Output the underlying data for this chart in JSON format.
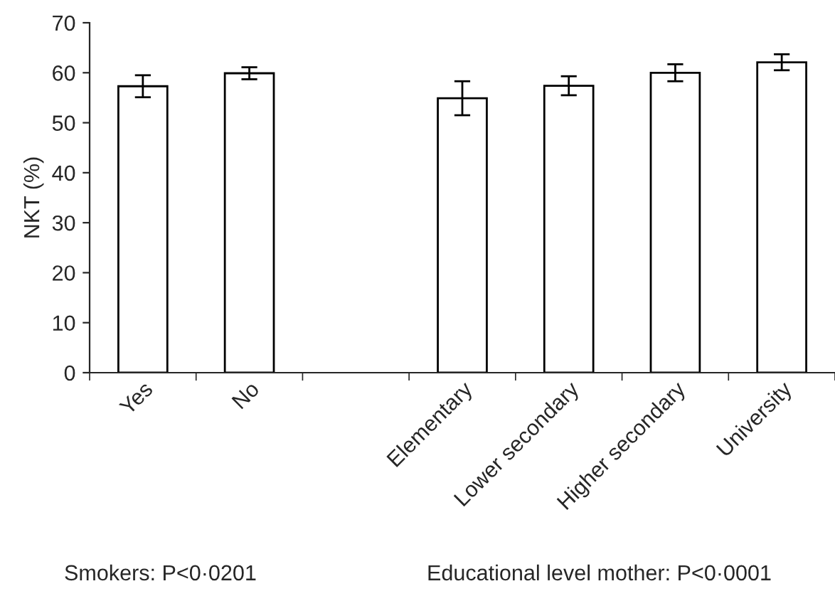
{
  "chart_data": {
    "type": "bar",
    "ylabel": "NKT (%)",
    "categories": [
      "Yes",
      "No",
      null,
      "Elementary",
      "Lower secondary",
      "Higher secondary",
      "University"
    ],
    "values": [
      57.3,
      59.9,
      null,
      54.9,
      57.4,
      60.0,
      62.1
    ],
    "errors": [
      2.2,
      1.2,
      null,
      3.4,
      1.9,
      1.7,
      1.6
    ],
    "color": "#ffffff",
    "ylim": [
      0,
      70
    ],
    "yticks": [
      0,
      10,
      20,
      30,
      40,
      50,
      60,
      70
    ],
    "grid": false,
    "legend": false,
    "annotations": [
      "Smokers: P<0·0201",
      "Educational level mother: P<0·0001"
    ]
  }
}
